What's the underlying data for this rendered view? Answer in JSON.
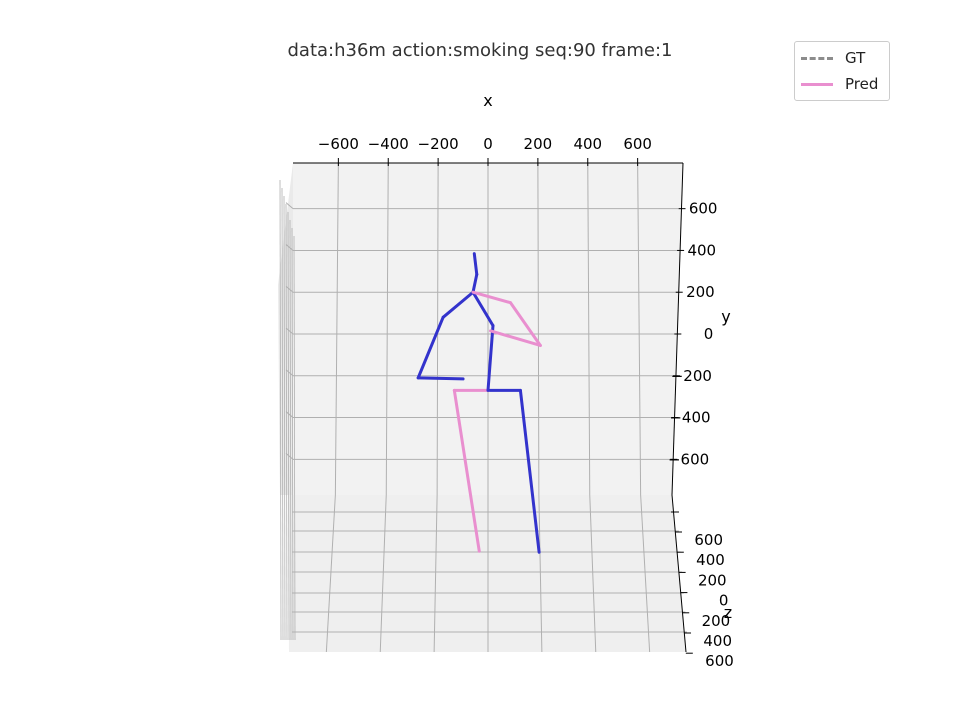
{
  "chart_data": {
    "type": "3d-line",
    "title": "data:h36m action:smoking seq:90 frame:1",
    "xlabel": "x",
    "ylabel": "y",
    "zlabel": "z",
    "x_ticks": [
      "−600",
      "−400",
      "−200",
      "0",
      "200",
      "400",
      "600"
    ],
    "y_ticks": [
      "600",
      "400",
      "200",
      "0",
      "−200",
      "−400",
      "−600"
    ],
    "z_ticks": [
      "600",
      "400",
      "200",
      "0",
      "200",
      "400",
      "600"
    ],
    "grid": true,
    "legend_placement": "top-right",
    "legend": [
      {
        "name": "GT",
        "style": "dashed",
        "color": "#8c8c8c"
      },
      {
        "name": "Pred",
        "style": "solid",
        "color": "#e98fcf"
      }
    ],
    "colors": {
      "left_limbs": "#3333cc",
      "right_limbs": "#e98fcf",
      "gt": "#8c8c8c",
      "pane": "#f2f2f2",
      "grid": "#b0b0b0"
    },
    "skeleton_segments": [
      {
        "x": [
          0,
          130
        ],
        "y": [
          -270,
          -270
        ],
        "color": "#3333cc"
      },
      {
        "x": [
          130,
          205
        ],
        "y": [
          -270,
          -1045
        ],
        "color": "#3333cc"
      },
      {
        "x": [
          0,
          -135
        ],
        "y": [
          -270,
          -270
        ],
        "color": "#e98fcf"
      },
      {
        "x": [
          -135,
          -35
        ],
        "y": [
          -270,
          -1040
        ],
        "color": "#e98fcf"
      },
      {
        "x": [
          0,
          20
        ],
        "y": [
          -270,
          40
        ],
        "color": "#3333cc"
      },
      {
        "x": [
          20,
          -60
        ],
        "y": [
          40,
          200
        ],
        "color": "#3333cc"
      },
      {
        "x": [
          -60,
          -45
        ],
        "y": [
          200,
          285
        ],
        "color": "#3333cc"
      },
      {
        "x": [
          -45,
          -55
        ],
        "y": [
          285,
          385
        ],
        "color": "#3333cc"
      },
      {
        "x": [
          -60,
          -180
        ],
        "y": [
          200,
          80
        ],
        "color": "#3333cc"
      },
      {
        "x": [
          -180,
          -280
        ],
        "y": [
          80,
          -210
        ],
        "color": "#3333cc"
      },
      {
        "x": [
          -280,
          -100
        ],
        "y": [
          -210,
          -215
        ],
        "color": "#3333cc"
      },
      {
        "x": [
          -60,
          90
        ],
        "y": [
          200,
          150
        ],
        "color": "#e98fcf"
      },
      {
        "x": [
          90,
          210
        ],
        "y": [
          150,
          -55
        ],
        "color": "#e98fcf"
      },
      {
        "x": [
          210,
          10
        ],
        "y": [
          -55,
          15
        ],
        "color": "#e98fcf"
      }
    ]
  }
}
